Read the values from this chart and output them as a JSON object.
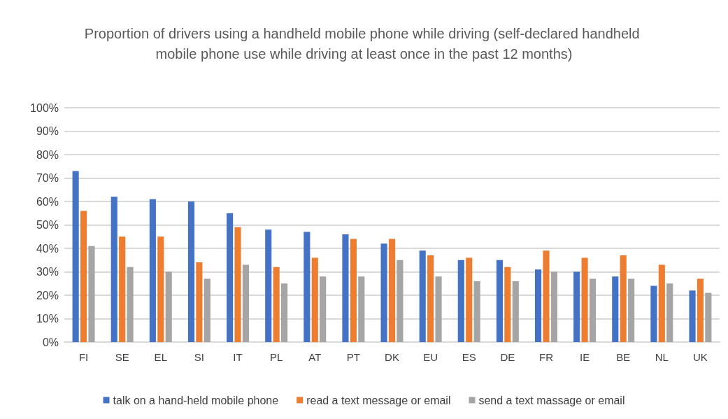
{
  "chart_data": {
    "type": "bar",
    "title": "Proportion of drivers using a handheld mobile phone while driving (self-declared handheld mobile phone use while driving at least once in the past 12 months)",
    "categories": [
      "FI",
      "SE",
      "EL",
      "SI",
      "IT",
      "PL",
      "AT",
      "PT",
      "DK",
      "EU",
      "ES",
      "DE",
      "FR",
      "IE",
      "BE",
      "NL",
      "UK"
    ],
    "series": [
      {
        "name": "talk on a hand-held mobile phone",
        "color": "#4472c4",
        "values": [
          73,
          62,
          61,
          60,
          55,
          48,
          47,
          46,
          42,
          39,
          35,
          35,
          31,
          30,
          28,
          24,
          22
        ]
      },
      {
        "name": "read a text message or email",
        "color": "#ed7d31",
        "values": [
          56,
          45,
          45,
          34,
          49,
          32,
          36,
          44,
          44,
          37,
          36,
          32,
          39,
          36,
          37,
          33,
          27
        ]
      },
      {
        "name": "send a text massage or email",
        "color": "#a5a5a5",
        "values": [
          41,
          32,
          30,
          27,
          33,
          25,
          28,
          28,
          35,
          28,
          26,
          26,
          30,
          27,
          27,
          25,
          21
        ]
      }
    ],
    "ylim": [
      0,
      100
    ],
    "yticks": [
      {
        "value": 0,
        "label": "0%"
      },
      {
        "value": 10,
        "label": "10%"
      },
      {
        "value": 20,
        "label": "20%"
      },
      {
        "value": 30,
        "label": "30%"
      },
      {
        "value": 40,
        "label": "40%"
      },
      {
        "value": 50,
        "label": "50%"
      },
      {
        "value": 60,
        "label": "60%"
      },
      {
        "value": 70,
        "label": "70%"
      },
      {
        "value": 80,
        "label": "80%"
      },
      {
        "value": 90,
        "label": "90%"
      },
      {
        "value": 100,
        "label": "100%"
      }
    ],
    "grid": "y",
    "legend": "bottom"
  }
}
